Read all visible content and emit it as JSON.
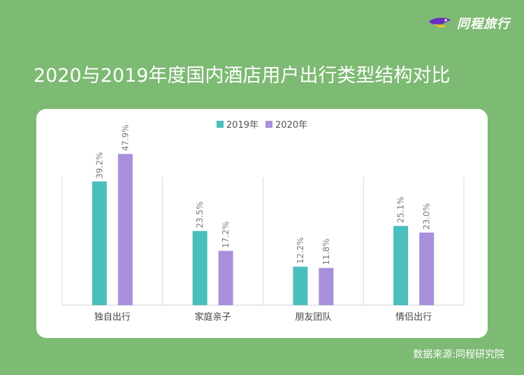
{
  "brand": {
    "name": "同程旅行",
    "logo_icon": "tongcheng-bird-logo-icon"
  },
  "title": "2020与2019年度国内酒店用户出行类型结构对比",
  "source": "数据来源:同程研究院",
  "colors": {
    "background": "#7dba73",
    "series_2019": "#4bbfbe",
    "series_2020": "#a98fdb",
    "brand_purple": "#6a2fbf",
    "brand_yellow": "#f6c21a"
  },
  "chart_data": {
    "type": "bar",
    "categories": [
      "独自出行",
      "家庭亲子",
      "朋友团队",
      "情侣出行"
    ],
    "series": [
      {
        "name": "2019年",
        "values": [
          39.2,
          23.5,
          12.2,
          25.1
        ],
        "labels": [
          "39.2%",
          "23.5%",
          "12.2%",
          "25.1%"
        ]
      },
      {
        "name": "2020年",
        "values": [
          47.9,
          17.2,
          11.8,
          23.0
        ],
        "labels": [
          "47.9%",
          "17.2%",
          "11.8%",
          "23.0%"
        ]
      }
    ],
    "ylim": [
      0,
      50
    ],
    "grid": false,
    "legend": "top-center"
  }
}
